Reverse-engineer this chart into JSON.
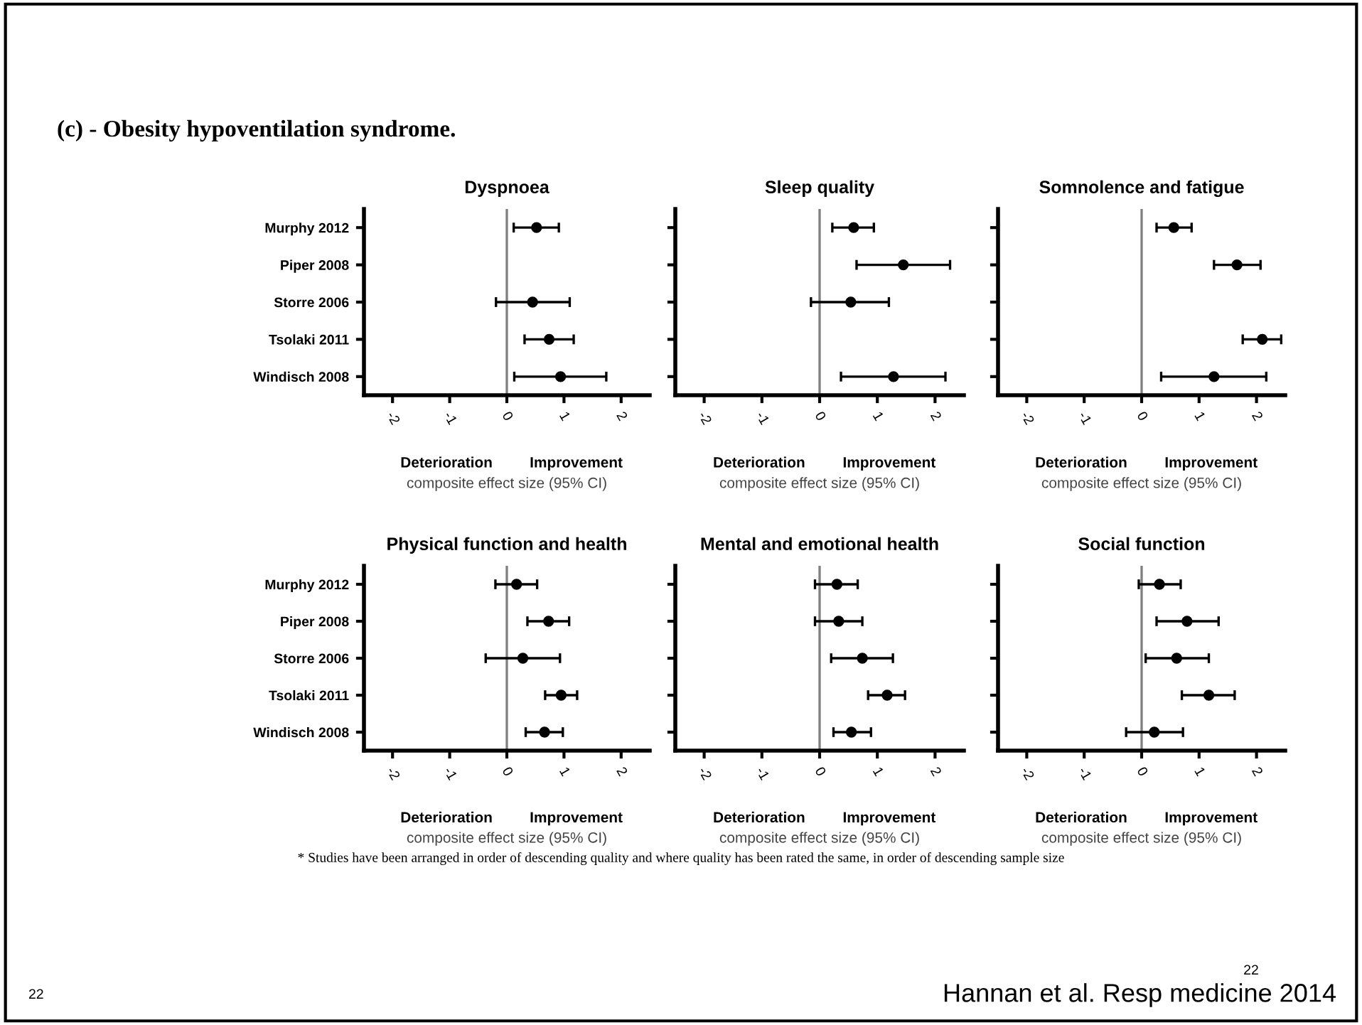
{
  "chart_data": [
    {
      "type": "scatter",
      "orientation": "horizontal",
      "title": "Dyspnoea",
      "xlabel": "composite effect size (95% CI)",
      "categories": [
        "Murphy 2012",
        "Piper 2008",
        "Storre 2006",
        "Tsolaki 2011",
        "Windisch 2008"
      ],
      "values": [
        0.52,
        null,
        0.45,
        0.74,
        0.94
      ],
      "errors": [
        [
          0.12,
          0.91
        ],
        null,
        [
          -0.19,
          1.1
        ],
        [
          0.31,
          1.17
        ],
        [
          0.13,
          1.74
        ]
      ],
      "color": "#000000",
      "marker": "circle",
      "xlim": [
        -2.5,
        2.5
      ],
      "xticks": [
        -2,
        -1,
        0,
        1,
        2
      ],
      "ref_lines": [
        {
          "axis": "x",
          "value": 0,
          "color": "#808080"
        }
      ],
      "grid": false,
      "annotations": [
        "Deterioration",
        "Improvement",
        "(c) - Obesity hypoventilation syndrome.",
        "* Studies have been arranged in order of descending quality and where quality has been rated the same, in order of descending sample size",
        "22",
        "Hannan et al. Resp medicine 2014",
        "22"
      ]
    },
    {
      "type": "scatter",
      "orientation": "horizontal",
      "title": "Sleep quality",
      "xlabel": "composite effect size (95% CI)",
      "categories": [
        null,
        null,
        null,
        null,
        null
      ],
      "values": [
        0.59,
        1.45,
        0.54,
        null,
        1.28
      ],
      "errors": [
        [
          0.22,
          0.94
        ],
        [
          0.64,
          2.26
        ],
        [
          -0.15,
          1.2
        ],
        null,
        [
          0.37,
          2.18
        ]
      ],
      "color": "#000000",
      "marker": "circle",
      "xlim": [
        -2.5,
        2.5
      ],
      "xticks": [
        -2,
        -1,
        0,
        1,
        2
      ],
      "ref_lines": [
        {
          "axis": "x",
          "value": 0,
          "color": "#808080"
        }
      ],
      "grid": false,
      "annotations": [
        "Deterioration",
        "Improvement"
      ]
    },
    {
      "type": "scatter",
      "orientation": "horizontal",
      "title": "Somnolence and fatigue",
      "xlabel": "composite effect size (95% CI)",
      "categories": [
        null,
        null,
        null,
        null,
        null
      ],
      "values": [
        0.56,
        1.66,
        null,
        2.1,
        1.26
      ],
      "errors": [
        [
          0.26,
          0.87
        ],
        [
          1.26,
          2.07
        ],
        null,
        [
          1.76,
          2.43
        ],
        [
          0.34,
          2.17
        ]
      ],
      "color": "#000000",
      "marker": "circle",
      "xlim": [
        -2.5,
        2.5
      ],
      "xticks": [
        -2,
        -1,
        0,
        1,
        2
      ],
      "ref_lines": [
        {
          "axis": "x",
          "value": 0,
          "color": "#808080"
        }
      ],
      "grid": false,
      "annotations": [
        "Deterioration",
        "Improvement"
      ]
    },
    {
      "type": "scatter",
      "orientation": "horizontal",
      "title": "Physical function and health",
      "xlabel": "composite effect size (95% CI)",
      "categories": [
        "Murphy 2012",
        "Piper 2008",
        "Storre 2006",
        "Tsolaki 2011",
        "Windisch 2008"
      ],
      "values": [
        0.17,
        0.73,
        0.28,
        0.95,
        0.66
      ],
      "errors": [
        [
          -0.2,
          0.53
        ],
        [
          0.36,
          1.09
        ],
        [
          -0.37,
          0.93
        ],
        [
          0.67,
          1.23
        ],
        [
          0.33,
          0.98
        ]
      ],
      "color": "#000000",
      "marker": "circle",
      "xlim": [
        -2.5,
        2.5
      ],
      "xticks": [
        -2,
        -1,
        0,
        1,
        2
      ],
      "ref_lines": [
        {
          "axis": "x",
          "value": 0,
          "color": "#808080"
        }
      ],
      "grid": false,
      "annotations": [
        "Deterioration",
        "Improvement"
      ]
    },
    {
      "type": "scatter",
      "orientation": "horizontal",
      "title": "Mental and emotional health",
      "xlabel": "composite effect size (95% CI)",
      "categories": [
        null,
        null,
        null,
        null,
        null
      ],
      "values": [
        0.3,
        0.33,
        0.74,
        1.17,
        0.55
      ],
      "errors": [
        [
          -0.08,
          0.66
        ],
        [
          -0.08,
          0.74
        ],
        [
          0.2,
          1.27
        ],
        [
          0.84,
          1.48
        ],
        [
          0.24,
          0.89
        ]
      ],
      "color": "#000000",
      "marker": "circle",
      "xlim": [
        -2.5,
        2.5
      ],
      "xticks": [
        -2,
        -1,
        0,
        1,
        2
      ],
      "ref_lines": [
        {
          "axis": "x",
          "value": 0,
          "color": "#808080"
        }
      ],
      "grid": false,
      "annotations": [
        "Deterioration",
        "Improvement"
      ]
    },
    {
      "type": "scatter",
      "orientation": "horizontal",
      "title": "Social function",
      "xlabel": "composite effect size (95% CI)",
      "categories": [
        null,
        null,
        null,
        null,
        null
      ],
      "values": [
        0.31,
        0.79,
        0.61,
        1.17,
        0.22
      ],
      "errors": [
        [
          -0.05,
          0.68
        ],
        [
          0.26,
          1.34
        ],
        [
          0.07,
          1.17
        ],
        [
          0.7,
          1.62
        ],
        [
          -0.27,
          0.72
        ]
      ],
      "color": "#000000",
      "marker": "circle",
      "xlim": [
        -2.5,
        2.5
      ],
      "xticks": [
        -2,
        -1,
        0,
        1,
        2
      ],
      "ref_lines": [
        {
          "axis": "x",
          "value": 0,
          "color": "#808080"
        }
      ],
      "grid": false,
      "annotations": [
        "Deterioration",
        "Improvement"
      ]
    }
  ]
}
